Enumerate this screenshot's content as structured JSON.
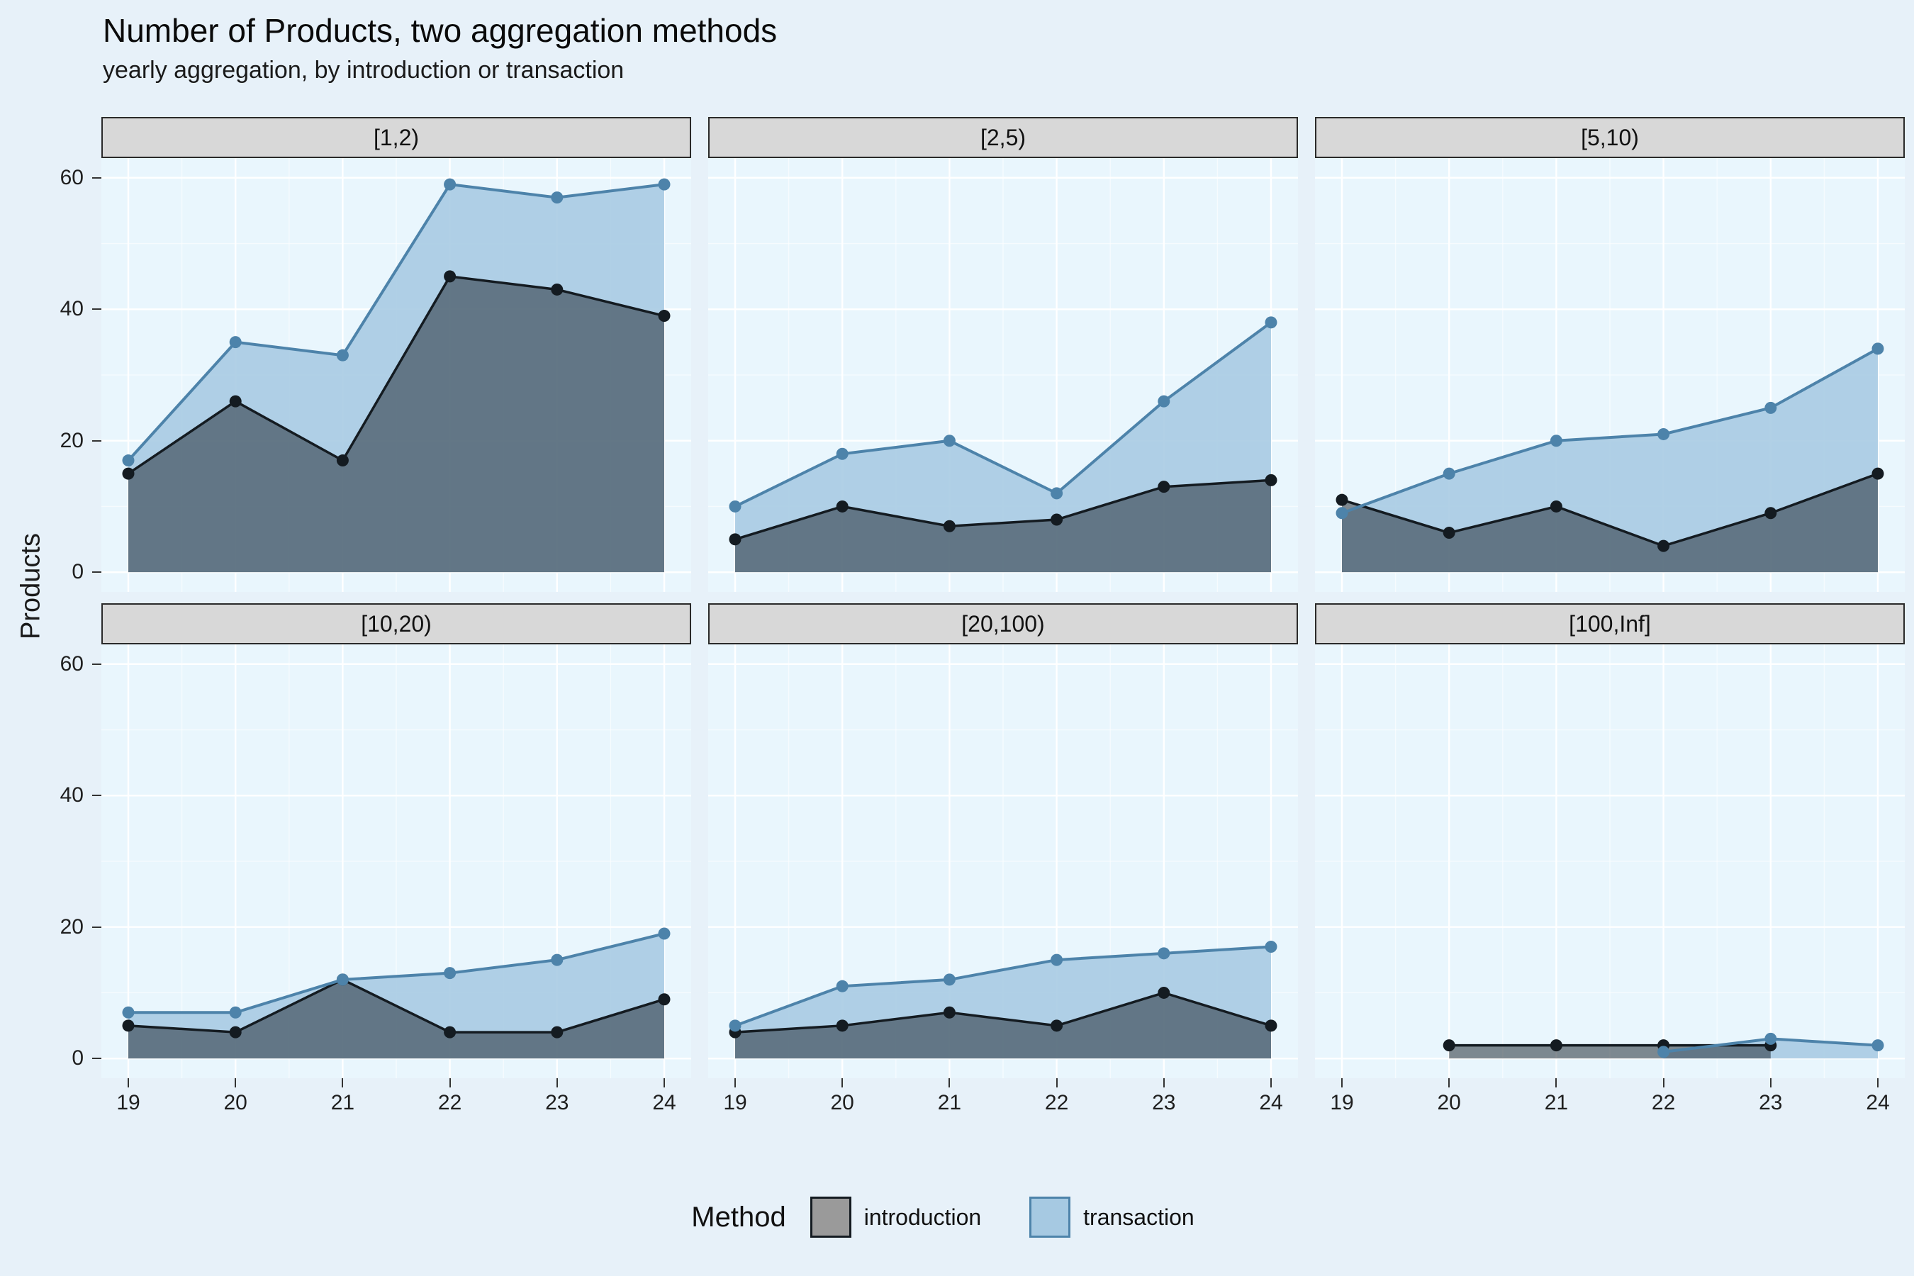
{
  "chart_data": {
    "type": "area",
    "title": "Number of Products, two aggregation methods",
    "subtitle": "yearly aggregation, by introduction or transaction",
    "ylabel": "Products",
    "xlabel": "",
    "x": [
      19,
      20,
      21,
      22,
      23,
      24
    ],
    "yticks": [
      0,
      20,
      40,
      60
    ],
    "ylim": [
      0,
      60
    ],
    "grid": "on",
    "facets": [
      {
        "label": "[1,2)",
        "series": [
          {
            "name": "introduction",
            "values": [
              15,
              26,
              17,
              45,
              43,
              39
            ]
          },
          {
            "name": "transaction",
            "values": [
              17,
              35,
              33,
              59,
              57,
              59
            ]
          }
        ]
      },
      {
        "label": "[2,5)",
        "series": [
          {
            "name": "introduction",
            "values": [
              5,
              10,
              7,
              8,
              13,
              14
            ]
          },
          {
            "name": "transaction",
            "values": [
              10,
              18,
              20,
              12,
              26,
              38
            ]
          }
        ]
      },
      {
        "label": "[5,10)",
        "series": [
          {
            "name": "introduction",
            "values": [
              11,
              6,
              10,
              4,
              9,
              15
            ]
          },
          {
            "name": "transaction",
            "values": [
              9,
              15,
              20,
              21,
              25,
              34
            ]
          }
        ]
      },
      {
        "label": "[10,20)",
        "series": [
          {
            "name": "introduction",
            "values": [
              5,
              4,
              12,
              4,
              4,
              9
            ]
          },
          {
            "name": "transaction",
            "values": [
              7,
              7,
              12,
              13,
              15,
              19
            ]
          }
        ]
      },
      {
        "label": "[20,100)",
        "series": [
          {
            "name": "introduction",
            "values": [
              4,
              5,
              7,
              5,
              10,
              5
            ]
          },
          {
            "name": "transaction",
            "values": [
              5,
              11,
              12,
              15,
              16,
              17
            ]
          }
        ]
      },
      {
        "label": "[100,Inf]",
        "series": [
          {
            "name": "introduction",
            "values": [
              null,
              2,
              2,
              2,
              2,
              null
            ]
          },
          {
            "name": "transaction",
            "values": [
              null,
              null,
              null,
              1,
              3,
              2
            ]
          }
        ]
      }
    ],
    "legend": {
      "title": "Method",
      "entries": [
        "introduction",
        "transaction"
      ],
      "position": "bottom"
    },
    "colors": {
      "panel_background": "#e9f6fd",
      "plot_background": "#e7f1f9",
      "gridline": "#ffffff",
      "strip_background": "#d8d8d8",
      "introduction_line": "#141b21",
      "introduction_fill": "rgba(35,45,55,0.55)",
      "introduction_key_fill": "#9a9a9a",
      "transaction_line": "#4d83aa",
      "transaction_fill": "#a6c9e2"
    }
  }
}
